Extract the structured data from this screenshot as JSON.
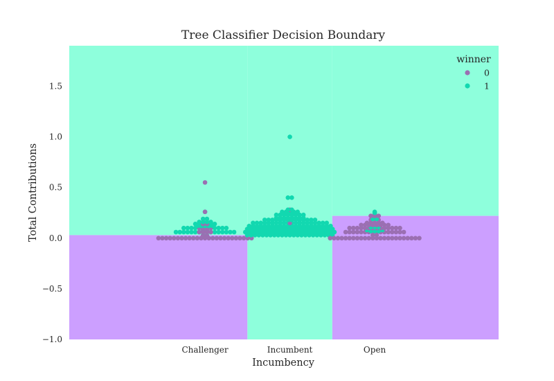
{
  "chart_data": {
    "type": "scatter",
    "subtype": "swarm plot over classifier decision regions",
    "title": "Tree Classifier Decision Boundary",
    "xlabel": "Incumbency",
    "ylabel": "Total Contributions",
    "categories": [
      "Challenger",
      "Incumbent",
      "Open"
    ],
    "ylim": [
      -1.0,
      1.9
    ],
    "yticks": [
      -1.0,
      -0.5,
      0.0,
      0.5,
      1.0,
      1.5
    ],
    "ytick_labels": [
      "−1.0",
      "−0.5",
      "0.0",
      "0.5",
      "1.0",
      "1.5"
    ],
    "grid": false,
    "legend": {
      "title": "winner",
      "placement": "top-right",
      "entries": [
        {
          "label": "0",
          "color": "#9b6fb2"
        },
        {
          "label": "1",
          "color": "#12d8b0"
        }
      ]
    },
    "colors": {
      "region_winner_1": "#8effdc",
      "region_winner_0": "#cc9fff",
      "point_winner_0": "#9b6fb2",
      "point_winner_1": "#12d8b0"
    },
    "decision_regions": [
      {
        "x_range": [
          -1.6,
          0.5
        ],
        "threshold": 0.03,
        "below": 0,
        "above": 1
      },
      {
        "x_range": [
          0.5,
          1.5
        ],
        "threshold": -1.0,
        "below": 0,
        "above": 1
      },
      {
        "x_range": [
          1.5,
          3.46
        ],
        "threshold": 0.22,
        "below": 0,
        "above": 1
      }
    ],
    "swarms": [
      {
        "category": "Challenger",
        "rows": [
          {
            "y": 0.0,
            "winner": 0,
            "count": 25
          },
          {
            "y": 0.03,
            "winner": 0,
            "count": 2
          },
          {
            "y": 0.06,
            "winner": 1,
            "count": 16
          },
          {
            "y": 0.06,
            "winner": 0,
            "count": 4
          },
          {
            "y": 0.08,
            "winner": 0,
            "count": 2
          },
          {
            "y": 0.1,
            "winner": 1,
            "count": 12
          },
          {
            "y": 0.1,
            "winner": 0,
            "count": 4
          },
          {
            "y": 0.12,
            "winner": 1,
            "count": 5
          },
          {
            "y": 0.14,
            "winner": 1,
            "count": 6
          },
          {
            "y": 0.14,
            "winner": 0,
            "count": 2
          },
          {
            "y": 0.16,
            "winner": 1,
            "count": 4
          },
          {
            "y": 0.19,
            "winner": 1,
            "count": 2
          },
          {
            "y": 0.26,
            "winner": 1,
            "count": 1
          },
          {
            "y": 0.26,
            "winner": 0,
            "count": 1
          },
          {
            "y": 0.55,
            "winner": 0,
            "count": 1
          }
        ]
      },
      {
        "category": "Incumbent",
        "rows": [
          {
            "y": 0.03,
            "winner": 1,
            "count": 23
          },
          {
            "y": 0.06,
            "winner": 1,
            "count": 24
          },
          {
            "y": 0.09,
            "winner": 1,
            "count": 23
          },
          {
            "y": 0.12,
            "winner": 1,
            "count": 22
          },
          {
            "y": 0.15,
            "winner": 1,
            "count": 20
          },
          {
            "y": 0.15,
            "winner": 0,
            "count": 1
          },
          {
            "y": 0.18,
            "winner": 1,
            "count": 14
          },
          {
            "y": 0.2,
            "winner": 1,
            "count": 8
          },
          {
            "y": 0.23,
            "winner": 1,
            "count": 8
          },
          {
            "y": 0.26,
            "winner": 1,
            "count": 5
          },
          {
            "y": 0.28,
            "winner": 0,
            "count": 1
          },
          {
            "y": 0.28,
            "winner": 1,
            "count": 2
          },
          {
            "y": 0.4,
            "winner": 1,
            "count": 2
          },
          {
            "y": 1.0,
            "winner": 1,
            "count": 1
          }
        ]
      },
      {
        "category": "Open",
        "rows": [
          {
            "y": 0.0,
            "winner": 0,
            "count": 24
          },
          {
            "y": 0.03,
            "winner": 0,
            "count": 2
          },
          {
            "y": 0.06,
            "winner": 0,
            "count": 16
          },
          {
            "y": 0.07,
            "winner": 1,
            "count": 3
          },
          {
            "y": 0.08,
            "winner": 1,
            "count": 5
          },
          {
            "y": 0.1,
            "winner": 0,
            "count": 14
          },
          {
            "y": 0.11,
            "winner": 1,
            "count": 3
          },
          {
            "y": 0.13,
            "winner": 0,
            "count": 8
          },
          {
            "y": 0.15,
            "winner": 0,
            "count": 5
          },
          {
            "y": 0.18,
            "winner": 0,
            "count": 3
          },
          {
            "y": 0.19,
            "winner": 1,
            "count": 2
          },
          {
            "y": 0.22,
            "winner": 0,
            "count": 3
          },
          {
            "y": 0.24,
            "winner": 0,
            "count": 1
          },
          {
            "y": 0.25,
            "winner": 1,
            "count": 1
          },
          {
            "y": 0.26,
            "winner": 1,
            "count": 1
          }
        ]
      }
    ]
  }
}
